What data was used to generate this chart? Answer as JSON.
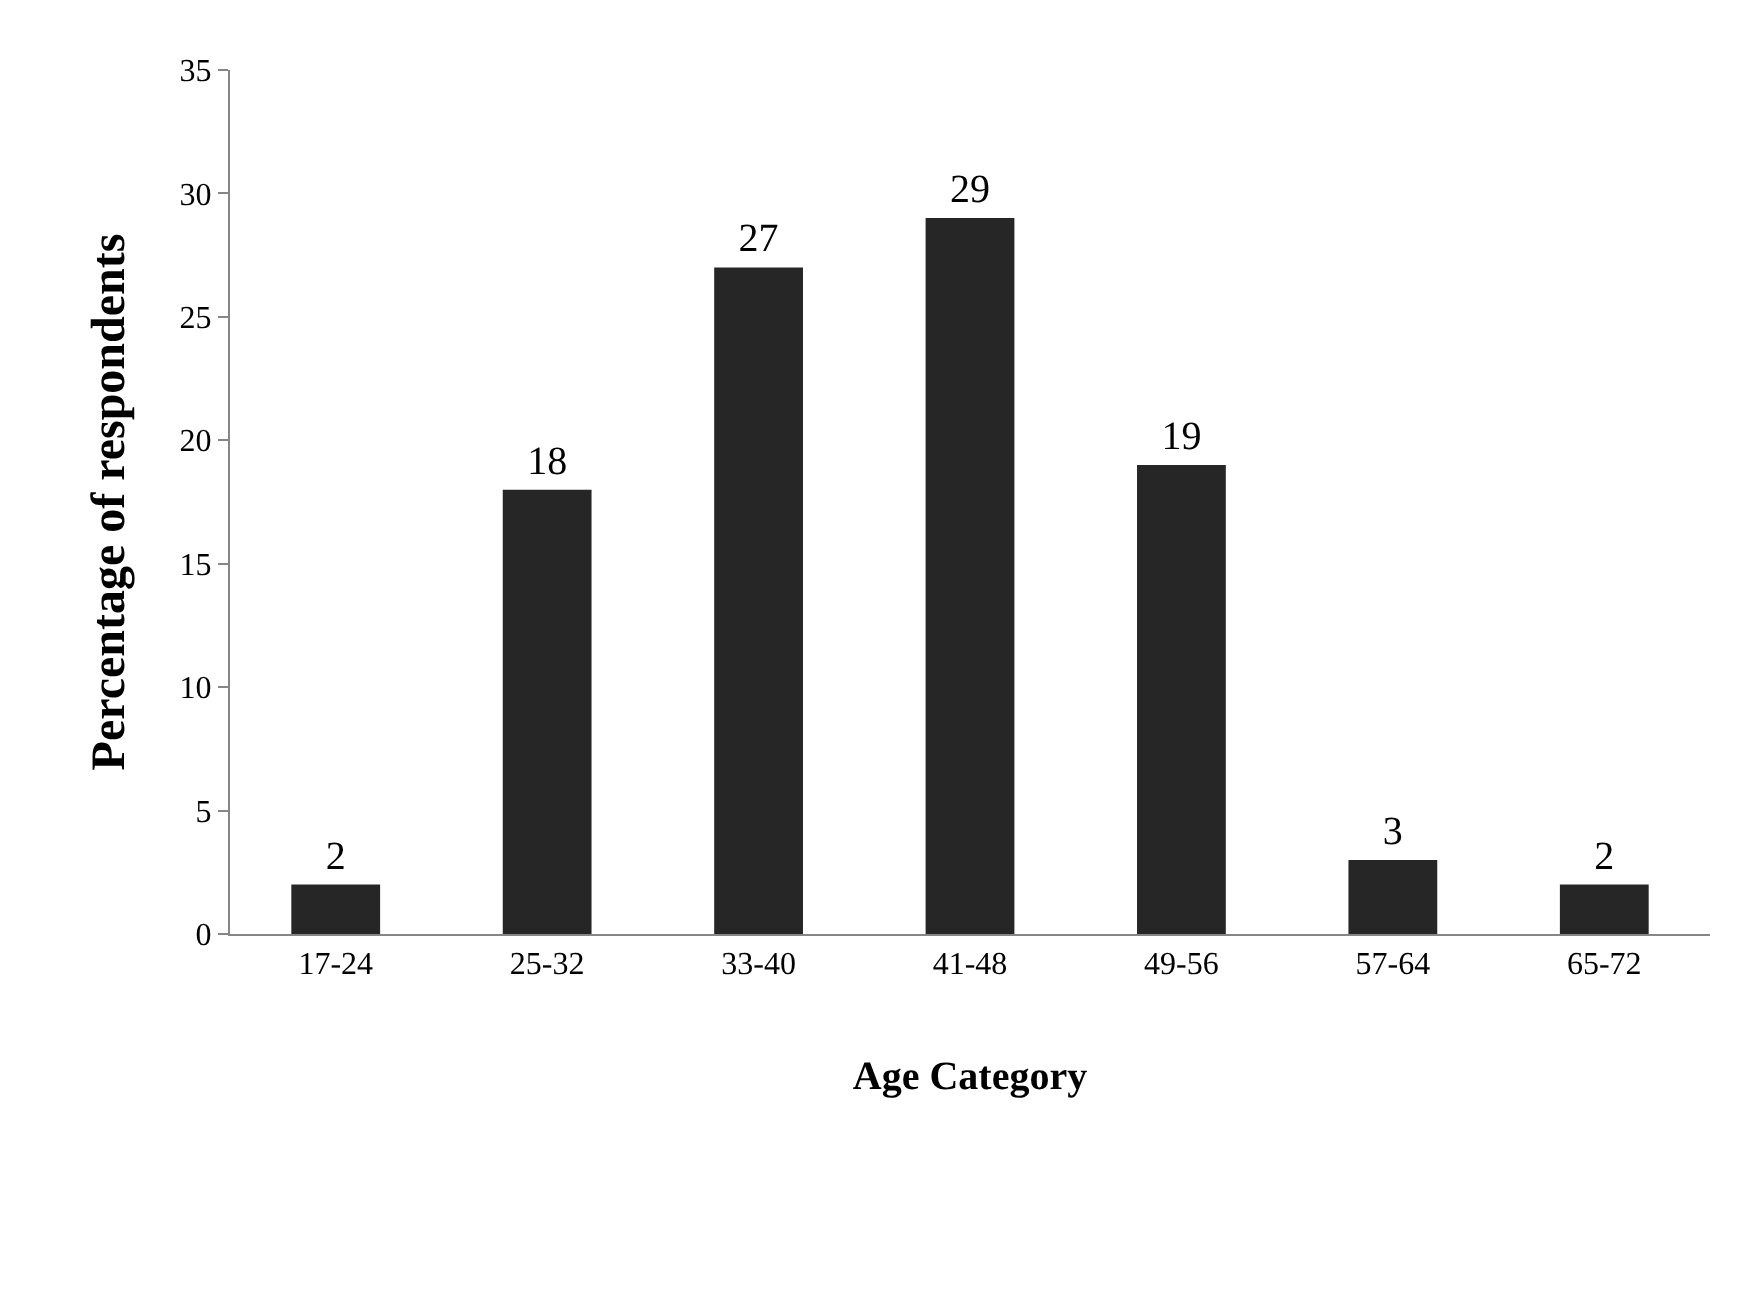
{
  "chart_data": {
    "type": "bar",
    "xlabel": "Age Category",
    "ylabel": "Percentage of respondents",
    "categories": [
      "17-24",
      "25-32",
      "33-40",
      "41-48",
      "49-56",
      "57-64",
      "65-72"
    ],
    "values": [
      2,
      18,
      27,
      29,
      19,
      3,
      2
    ],
    "color": "#262626",
    "ylim": [
      0,
      35
    ],
    "yticks": [
      0,
      5,
      10,
      15,
      20,
      25,
      30,
      35
    ],
    "data_labels": true
  }
}
